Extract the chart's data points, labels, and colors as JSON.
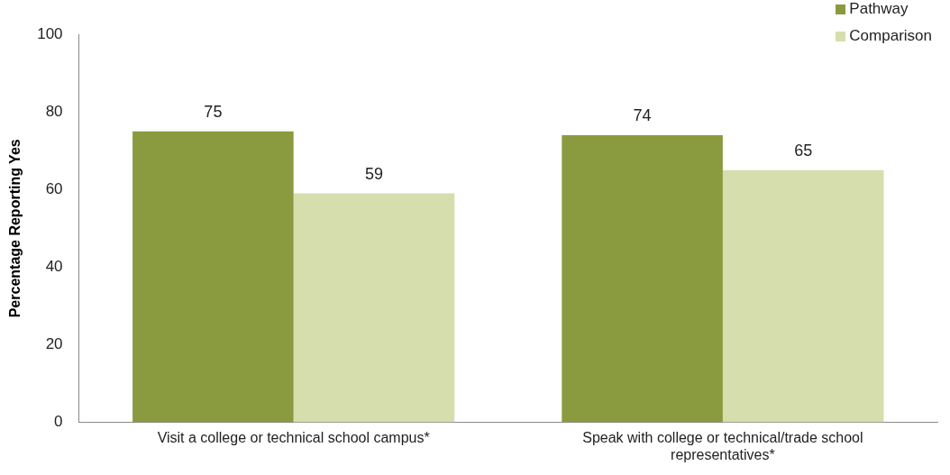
{
  "chart_data": {
    "type": "bar",
    "ylabel": "Percentage Reporting Yes",
    "categories": [
      "Visit a college or technical school campus*",
      "Speak with college or technical/trade school representatives*"
    ],
    "series": [
      {
        "name": "Pathway",
        "color": "#8a9a3f",
        "values": [
          75,
          74
        ]
      },
      {
        "name": "Comparison",
        "color": "#d6deae",
        "values": [
          59,
          65
        ]
      }
    ],
    "ylim": [
      0,
      100
    ],
    "yticks": [
      0,
      20,
      40,
      60,
      80,
      100
    ],
    "grid": false,
    "legend": "top right",
    "data_labels": true
  }
}
